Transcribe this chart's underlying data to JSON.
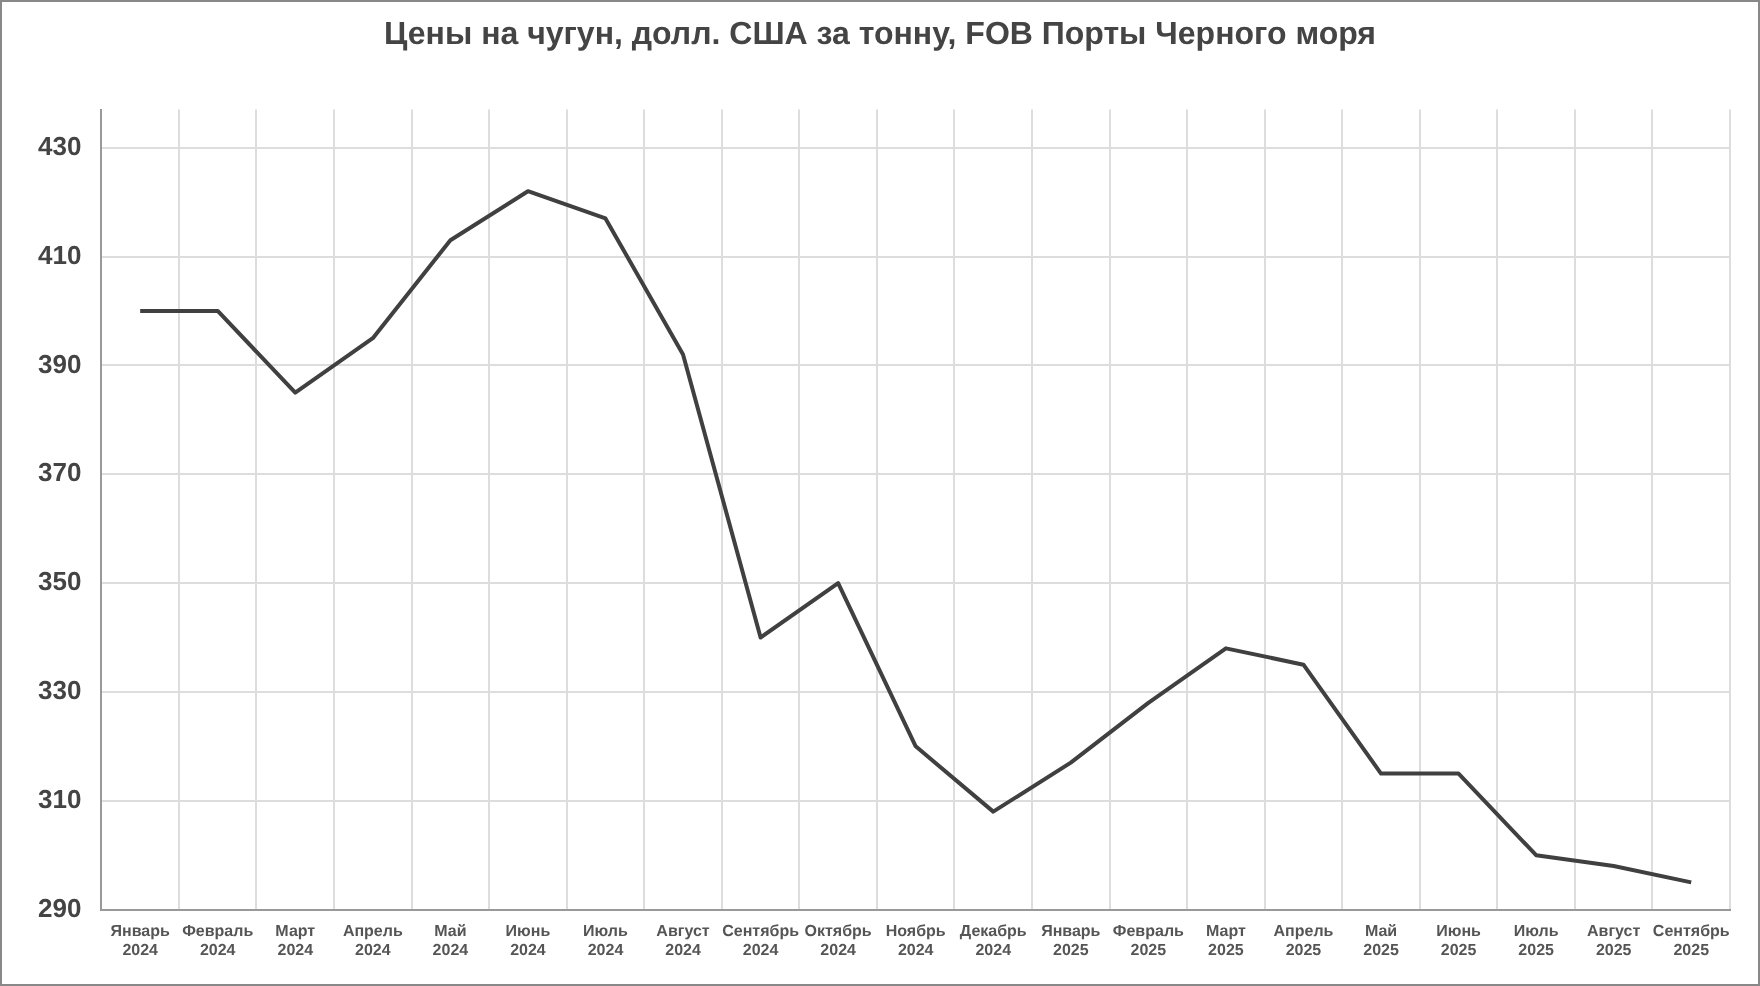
{
  "chart_data": {
    "type": "line",
    "title": "Цены на чугун, долл. США за тонну, FOB Порты Черного моря",
    "categories": [
      "Январь 2024",
      "Февраль 2024",
      "Март 2024",
      "Апрель 2024",
      "Май 2024",
      "Июнь 2024",
      "Июль 2024",
      "Август 2024",
      "Сентябрь 2024",
      "Октябрь 2024",
      "Ноябрь 2024",
      "Декабрь 2024",
      "Январь 2025",
      "Февраль 2025",
      "Март 2025",
      "Апрель 2025",
      "Май 2025",
      "Июнь 2025",
      "Июль 2025",
      "Август 2025",
      "Сентябрь 2025"
    ],
    "series": [
      {
        "color": "#404040",
        "values": [
          400,
          400,
          385,
          395,
          413,
          422,
          417,
          392,
          340,
          350,
          320,
          308,
          317,
          328,
          338,
          335,
          315,
          315,
          300,
          298,
          295
        ]
      }
    ],
    "ylim": [
      290,
      437
    ],
    "yticks": [
      290,
      310,
      330,
      350,
      370,
      390,
      410,
      430
    ],
    "grid": true,
    "legend": false,
    "marker": "none",
    "line_style": "solid"
  }
}
